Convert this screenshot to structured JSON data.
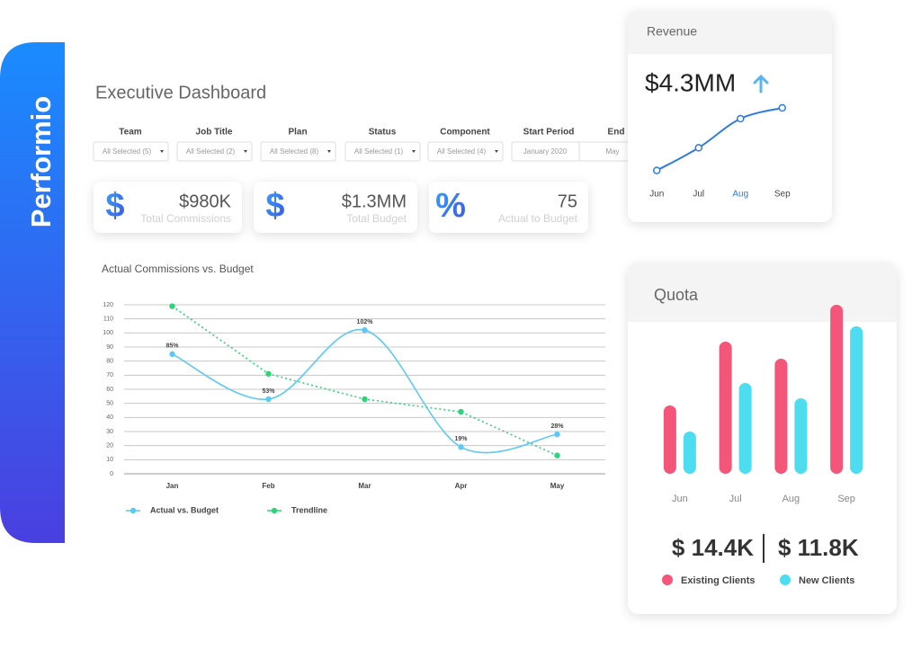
{
  "brand": "Performio",
  "header": {
    "title": "Executive Dashboard"
  },
  "filters": [
    {
      "label": "Team",
      "value": "All Selected (5)"
    },
    {
      "label": "Job Title",
      "value": "All Selected (2)"
    },
    {
      "label": "Plan",
      "value": "All Selected (8)"
    },
    {
      "label": "Status",
      "value": "All Selected (1)"
    },
    {
      "label": "Component",
      "value": "All Selected (4)"
    },
    {
      "label": "Start Period",
      "value": "January 2020"
    },
    {
      "label": "End",
      "value": "May"
    }
  ],
  "kpis": [
    {
      "icon": "$",
      "value": "$980K",
      "label": "Total Commissions"
    },
    {
      "icon": "$",
      "value": "$1.3MM",
      "label": "Total Budget"
    },
    {
      "icon": "%",
      "value": "75",
      "label": "Actual to Budget"
    }
  ],
  "chart_data": [
    {
      "type": "line",
      "title": "Actual Commissions vs. Budget",
      "categories": [
        "Jan",
        "Feb",
        "Mar",
        "Apr",
        "May"
      ],
      "series": [
        {
          "name": "Actual vs. Budget",
          "color": "#5bc8f5",
          "smooth": true,
          "values": [
            85,
            53,
            102,
            19,
            28
          ],
          "value_labels": [
            "85%",
            "53%",
            "102%",
            "19%",
            "28%"
          ]
        },
        {
          "name": "Trendline",
          "color": "#2ed47a",
          "dashed": true,
          "values": [
            119,
            71,
            53,
            44,
            13
          ]
        }
      ],
      "ylim": [
        0,
        120
      ],
      "yticks": [
        0,
        10,
        20,
        30,
        40,
        50,
        60,
        70,
        80,
        90,
        100,
        110,
        120
      ],
      "grid": true
    },
    {
      "type": "line",
      "title": "Revenue",
      "headline": "$4.3MM",
      "categories": [
        "Jun",
        "Jul",
        "Aug",
        "Sep"
      ],
      "values": [
        17,
        38,
        65,
        75
      ],
      "color": "#2f7be0",
      "smooth": true,
      "point_style": "hollow",
      "ylim": [
        0,
        100
      ],
      "highlight_index": 2
    },
    {
      "type": "bar",
      "title": "Quota",
      "categories": [
        "Jun",
        "Jul",
        "Aug",
        "Sep"
      ],
      "series": [
        {
          "name": "Existing Clients",
          "color": "#f4567a",
          "values": [
            76,
            147,
            128,
            188
          ]
        },
        {
          "name": "New Clients",
          "color": "#4ddcf0",
          "values": [
            47,
            101,
            84,
            164
          ]
        }
      ],
      "ylim": [
        0,
        200
      ],
      "totals": [
        "$ 14.4K",
        "$ 11.8K"
      ]
    }
  ]
}
